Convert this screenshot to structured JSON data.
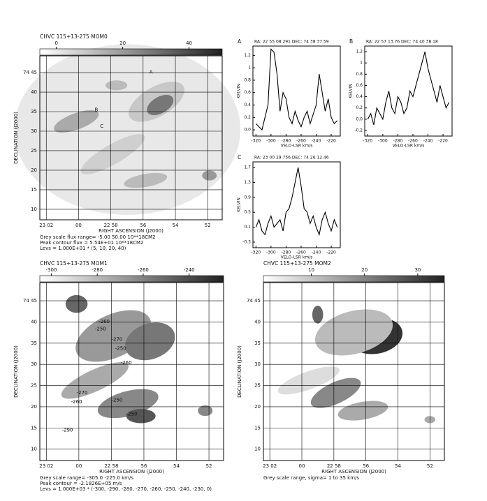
{
  "chart_data": [
    {
      "type": "map",
      "title": "CHVC 115+13-275 MOM0",
      "xlabel": "RIGHT ASCENSION (J2000)",
      "ylabel": "DECLINATION (J2000)",
      "xlim": [
        1382.4,
        1371.1
      ],
      "ylim": [
        7.3,
        49.3
      ],
      "xticks": [
        {
          "value": 1382,
          "label": "23 02"
        },
        {
          "value": 1380,
          "label": "00"
        },
        {
          "value": 1378,
          "label": "22 58"
        },
        {
          "value": 1376,
          "label": "56"
        },
        {
          "value": 1374,
          "label": "54"
        },
        {
          "value": 1372,
          "label": "52"
        }
      ],
      "yticks": [
        {
          "value": 45,
          "label": "74 45"
        },
        40,
        35,
        30,
        25,
        20,
        15,
        10
      ],
      "colorbar_lim": [
        -5,
        50
      ],
      "colorbar_ticks": [
        0,
        20,
        40
      ],
      "annotations": [
        "A",
        "B",
        "C"
      ],
      "notes": [
        "Grey scale flux range= -5.00 50.00 10**18CM2",
        "Peak contour flux = 5.54E+01 10**18CM2",
        "Levs = 1.000E+01 * (5, 10, 20, 40)"
      ]
    },
    {
      "type": "line",
      "panel_label": "A",
      "title": "RA: 22 55 08.291  DEC: 74 38 37.59",
      "xlabel": "VELO-LSR km/s",
      "ylabel": "KELVIN",
      "x": [
        -320,
        -316,
        -312,
        -308,
        -304,
        -300,
        -296,
        -292,
        -288,
        -284,
        -280,
        -276,
        -272,
        -268,
        -264,
        -260,
        -256,
        -252,
        -248,
        -244,
        -240,
        -236,
        -232,
        -228,
        -224,
        -220,
        -216,
        -212
      ],
      "values": [
        0.1,
        0.05,
        0.0,
        0.2,
        0.4,
        1.3,
        1.25,
        0.9,
        0.3,
        0.6,
        0.5,
        0.2,
        0.1,
        0.3,
        0.15,
        0.05,
        0.2,
        0.3,
        0.1,
        0.25,
        0.4,
        0.9,
        0.6,
        0.3,
        0.5,
        0.2,
        0.1,
        0.15
      ],
      "color": "#000000",
      "xlim": [
        -324,
        -208
      ],
      "ylim": [
        -0.1,
        1.35
      ],
      "xticks": [
        -320,
        -300,
        -280,
        -260,
        -240,
        -220
      ],
      "yticks": [
        {
          "value": 0,
          "label": "0.0"
        },
        0.2,
        0.4,
        0.6,
        0.8,
        1,
        1.2
      ]
    },
    {
      "type": "line",
      "panel_label": "B",
      "title": "RA: 22 57 13.76  DEC: 74 40 38.18",
      "xlabel": "VELO-LSR km/s",
      "ylabel": "KELVIN",
      "x": [
        -320,
        -316,
        -312,
        -308,
        -304,
        -300,
        -296,
        -292,
        -288,
        -284,
        -280,
        -276,
        -272,
        -268,
        -264,
        -260,
        -256,
        -252,
        -248,
        -244,
        -240,
        -236,
        -232,
        -228,
        -224,
        -220,
        -216,
        -212
      ],
      "values": [
        0.0,
        0.1,
        -0.1,
        0.2,
        0.1,
        0.0,
        0.3,
        0.5,
        0.2,
        0.1,
        0.4,
        0.3,
        0.1,
        0.2,
        0.5,
        0.4,
        0.6,
        0.8,
        1.0,
        1.2,
        0.9,
        0.7,
        0.5,
        0.3,
        0.6,
        0.4,
        0.2,
        0.3
      ],
      "color": "#000000",
      "xlim": [
        -324,
        -208
      ],
      "ylim": [
        -0.3,
        1.3
      ],
      "xticks": [
        -320,
        -300,
        -280,
        -260,
        -240,
        -220
      ],
      "yticks": [
        -0.2,
        {
          "value": 0,
          "label": "0.0"
        },
        0.2,
        0.4,
        0.6,
        0.8,
        1,
        1.2
      ]
    },
    {
      "type": "line",
      "panel_label": "C",
      "title": "RA: 23 00 29.756  DEC: 74 26 12.46",
      "xlabel": "VELO-LSR km/s",
      "ylabel": "KELVIN",
      "x": [
        -320,
        -316,
        -312,
        -308,
        -304,
        -300,
        -296,
        -292,
        -288,
        -284,
        -280,
        -276,
        -272,
        -268,
        -264,
        -260,
        -256,
        -252,
        -248,
        -244,
        -240,
        -236,
        -232,
        -228,
        -224,
        -220,
        -216,
        -212
      ],
      "values": [
        0.1,
        0.3,
        0.0,
        -0.1,
        0.2,
        0.4,
        0.1,
        0.2,
        0.3,
        0.0,
        0.5,
        0.6,
        0.9,
        1.3,
        1.7,
        1.2,
        0.6,
        0.5,
        0.2,
        0.4,
        0.1,
        -0.1,
        0.3,
        0.5,
        0.2,
        0.0,
        0.3,
        0.1
      ],
      "color": "#000000",
      "xlim": [
        -324,
        -208
      ],
      "ylim": [
        -0.45,
        1.85
      ],
      "xticks": [
        -320,
        -300,
        -280,
        -260,
        -240,
        -220
      ],
      "yticks": [
        -0.3,
        0.1,
        0.5,
        0.9,
        1.3,
        1.7
      ]
    },
    {
      "type": "map",
      "title": "CHVC 115+13-275 MOM1",
      "xlabel": "RIGHT ASCENSION (J2000)",
      "ylabel": "DECLINATION (J2000)",
      "xlim": [
        1382.4,
        1371.1
      ],
      "ylim": [
        7.3,
        49.3
      ],
      "xticks": [
        {
          "value": 1382,
          "label": "23 02"
        },
        {
          "value": 1380,
          "label": "00"
        },
        {
          "value": 1378,
          "label": "22 58"
        },
        {
          "value": 1376,
          "label": "56"
        },
        {
          "value": 1374,
          "label": "54"
        },
        {
          "value": 1372,
          "label": "52"
        }
      ],
      "yticks": [
        {
          "value": 45,
          "label": "74 45"
        },
        40,
        35,
        30,
        25,
        20,
        15,
        10
      ],
      "colorbar_lim": [
        -305,
        -225
      ],
      "colorbar_ticks": [
        -300,
        -280,
        -260,
        -240
      ],
      "annotations": [
        "-260",
        "-250",
        "-270",
        "-250",
        "-260",
        "-270",
        "-260",
        "-250",
        "-290",
        "-250"
      ],
      "notes": [
        "Grey scale range= -305.0 -225.0 km/s",
        "Peak contour = -2.1826E+05 m/s",
        "Levs = 1.000E+03 * (-300, -290, -280, -270, -260, -250, -240, -230, 0)"
      ]
    },
    {
      "type": "map",
      "title": "CHVC 115+13-275 MOM2",
      "xlabel": "RIGHT ASCENSION (J2000)",
      "ylabel": "DECLINATION (J2000)",
      "xlim": [
        1382.4,
        1371.1
      ],
      "ylim": [
        7.3,
        49.3
      ],
      "xticks": [
        {
          "value": 1382,
          "label": "23 02"
        },
        {
          "value": 1380,
          "label": "00"
        },
        {
          "value": 1378,
          "label": "22 58"
        },
        {
          "value": 1376,
          "label": "56"
        },
        {
          "value": 1374,
          "label": "54"
        },
        {
          "value": 1372,
          "label": "52"
        }
      ],
      "yticks": [
        {
          "value": 45,
          "label": "74 45"
        },
        40,
        35,
        30,
        25,
        20,
        15,
        10
      ],
      "colorbar_lim": [
        1,
        35
      ],
      "colorbar_ticks": [
        10,
        20,
        30
      ],
      "annotations": [],
      "notes": [
        "Grey scale range, sigma= 1 to 35 km/s"
      ]
    }
  ]
}
